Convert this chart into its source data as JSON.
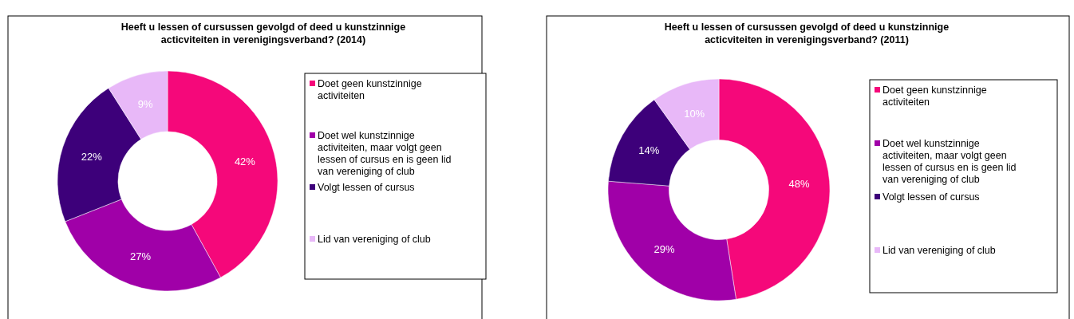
{
  "chart_data": [
    {
      "type": "donut",
      "title": "Heeft u lessen of cursussen gevolgd of  deed u kunstzinnige acticviteiten in verenigingsverband? (2014)",
      "categories": [
        "Doet geen kunstzinnige activiteiten",
        "Doet wel kunstzinnige activiteiten, maar volgt geen lessen of cursus en is geen lid van vereniging of club",
        "Volgt lessen of cursus",
        "Lid van vereniging of club"
      ],
      "values": [
        42,
        27,
        22,
        9
      ],
      "colors": [
        "#f5087a",
        "#a000a8",
        "#3d007a",
        "#e8b8f8"
      ],
      "value_labels": [
        "42%",
        "27%",
        "22%",
        "9%"
      ],
      "legend": "right"
    },
    {
      "type": "donut",
      "title": "Heeft u lessen of cursussen gevolgd of  deed u kunstzinnige acticviteiten in verenigingsverband? (2011)",
      "categories": [
        "Doet geen kunstzinnige activiteiten",
        "Doet wel kunstzinnige activiteiten, maar volgt geen lessen of cursus en is geen lid van vereniging of club",
        "Volgt lessen of cursus",
        "Lid van vereniging of club"
      ],
      "values": [
        48,
        29,
        14,
        10
      ],
      "colors": [
        "#f5087a",
        "#a000a8",
        "#3d007a",
        "#e8b8f8"
      ],
      "value_labels": [
        "48%",
        "29%",
        "14%",
        "10%"
      ],
      "legend": "right"
    }
  ]
}
